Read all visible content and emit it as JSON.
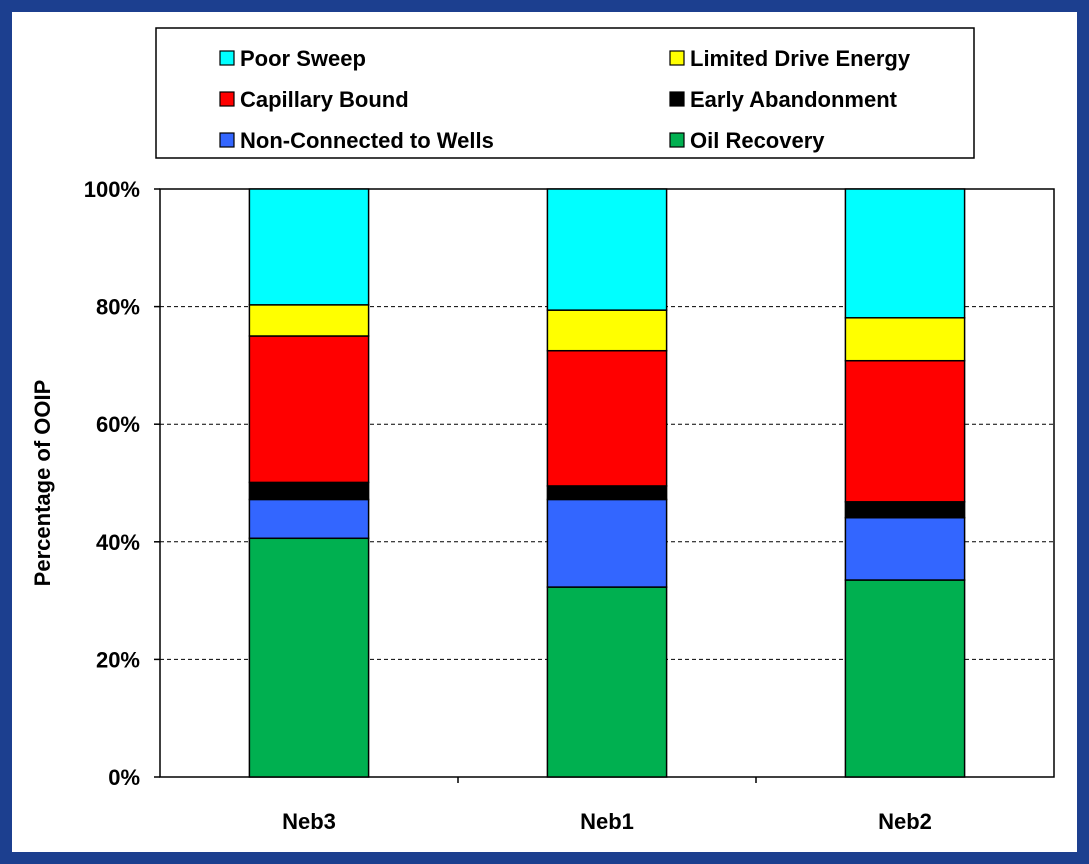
{
  "chart_data": {
    "type": "bar",
    "stacked": true,
    "title": "",
    "xlabel": "",
    "ylabel": "Percentage of OOIP",
    "ylim": [
      0,
      100
    ],
    "y_ticks": [
      "0%",
      "20%",
      "40%",
      "60%",
      "80%",
      "100%"
    ],
    "grid": "horizontal dashed",
    "legend_position": "top",
    "categories": [
      "Neb3",
      "Neb1",
      "Neb2"
    ],
    "series": [
      {
        "name": "Oil Recovery",
        "color": "#00b050",
        "values": [
          40.6,
          32.3,
          33.5
        ]
      },
      {
        "name": "Non-Connected to Wells",
        "color": "#3366ff",
        "values": [
          6.6,
          14.9,
          10.6
        ]
      },
      {
        "name": "Early Abandonment",
        "color": "#000000",
        "values": [
          2.9,
          2.3,
          2.7
        ]
      },
      {
        "name": "Capillary Bound",
        "color": "#ff0000",
        "values": [
          24.9,
          23.0,
          24.0
        ]
      },
      {
        "name": "Limited Drive Energy",
        "color": "#ffff00",
        "values": [
          5.3,
          6.9,
          7.3
        ]
      },
      {
        "name": "Poor Sweep",
        "color": "#00ffff",
        "values": [
          19.7,
          20.6,
          21.9
        ]
      }
    ],
    "legend_order": [
      "Poor Sweep",
      "Limited Drive Energy",
      "Capillary Bound",
      "Early Abandonment",
      "Non-Connected to Wells",
      "Oil Recovery"
    ]
  }
}
